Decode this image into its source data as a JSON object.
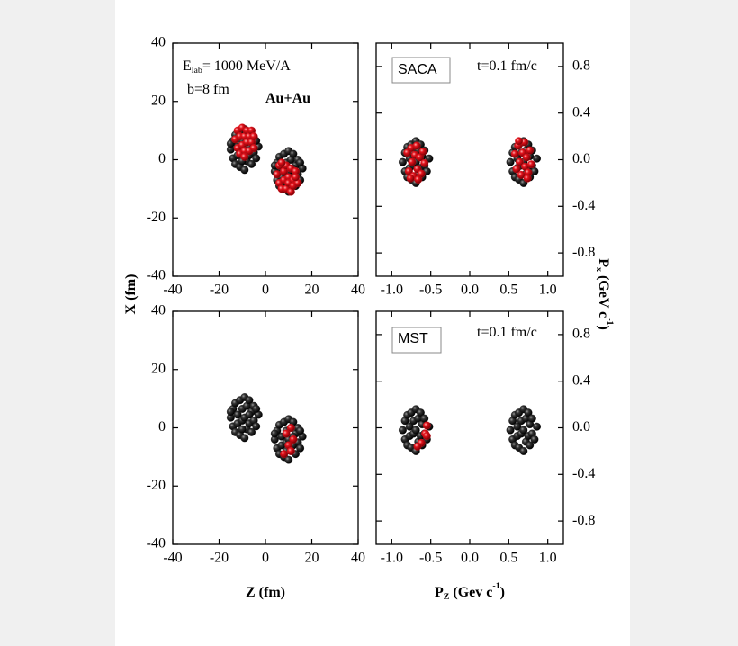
{
  "chart_data": [
    {
      "type": "scatter",
      "xlim": [
        -40,
        40
      ],
      "ylim": [
        -40,
        40
      ],
      "xticks": [
        -40,
        -20,
        0,
        20,
        40
      ],
      "yticks": [
        -40,
        -20,
        0,
        20,
        40
      ],
      "ytick_side": "left",
      "ylabel": [
        {
          "text": "X (fm)"
        }
      ],
      "annotations": [
        [
          {
            "text": "E"
          },
          {
            "sub": "lab"
          },
          {
            "text": "= 1000 MeV/A"
          }
        ],
        [
          {
            "text": "b=8 fm"
          }
        ],
        [
          {
            "text": "Au+Au"
          }
        ]
      ],
      "series": [
        {
          "color": "#1a1a1a",
          "x": [
            -15,
            -14,
            -14,
            -13,
            -13,
            -12,
            -12,
            -11,
            -11,
            -10,
            -10,
            -9,
            -9,
            -9,
            -8,
            -8,
            -7,
            -7,
            -6,
            -6,
            -5,
            -5,
            -4,
            -3,
            -15,
            -4,
            -10,
            -7,
            4,
            5,
            5,
            6,
            6,
            7,
            7,
            8,
            8,
            9,
            9,
            10,
            10,
            10,
            11,
            11,
            12,
            12,
            13,
            13,
            14,
            14,
            15,
            16,
            4,
            15,
            9,
            12
          ],
          "values": [
            3.5,
            6.5,
            0.5,
            8.5,
            -1.5,
            4.5,
            1.5,
            9.5,
            -2.5,
            6.5,
            2.5,
            10.5,
            -3.5,
            3.5,
            7.5,
            -0.5,
            9.5,
            1.5,
            5.5,
            -1.5,
            7.5,
            2.5,
            0.5,
            4.5,
            5.5,
            6.5,
            -0.5,
            4.5,
            -4,
            -1,
            -7,
            1,
            -9,
            -3,
            -6,
            2,
            -10,
            -1,
            -5,
            3,
            -11,
            -4,
            0,
            -8,
            2,
            -6,
            -2,
            -9,
            0,
            -5,
            -7,
            -3,
            -2,
            -1,
            -8,
            -3
          ]
        },
        {
          "color": "#e3121b",
          "x": [
            -13,
            -12,
            -12,
            -11,
            -11,
            -10,
            -10,
            -9,
            -9,
            -8,
            -8,
            -7,
            -7,
            -6,
            -6,
            -5,
            -5,
            -9,
            5,
            6,
            6,
            7,
            8,
            8,
            9,
            9,
            10,
            10,
            11,
            11,
            12,
            12,
            13,
            14,
            13,
            7
          ],
          "values": [
            7,
            10,
            4,
            8,
            2,
            11,
            5,
            8,
            3,
            10,
            6,
            8,
            3,
            10,
            6,
            4,
            8,
            1,
            -5,
            -2,
            -8,
            -10,
            -4,
            -7,
            -2,
            -10,
            -6,
            -8,
            -3,
            -11,
            -7,
            -9,
            -4,
            -8,
            -6,
            -1
          ]
        }
      ]
    },
    {
      "type": "scatter",
      "xlim": [
        -1.2,
        1.2
      ],
      "ylim": [
        -1,
        1
      ],
      "xticks": [
        {
          "value": -1,
          "label": "-1.0"
        },
        -0.5,
        {
          "value": 0,
          "label": "0.0"
        },
        0.5,
        {
          "value": 1,
          "label": "1.0"
        }
      ],
      "yticks": [
        -0.8,
        -0.4,
        {
          "value": 0,
          "label": "0.0"
        },
        0.4,
        0.8
      ],
      "ytick_side": "right",
      "ylabel": [
        {
          "text": "P"
        },
        {
          "sub": "x"
        },
        {
          "text": " (GeV c"
        },
        {
          "sup": "-1"
        },
        {
          "text": ")"
        }
      ],
      "annotations": [
        [
          {
            "text": "SACA"
          }
        ],
        [
          {
            "text": "t=0.1 fm/c"
          }
        ]
      ],
      "series": [
        {
          "color": "#1a1a1a",
          "x": [
            -0.86,
            -0.83,
            -0.83,
            -0.8,
            -0.8,
            -0.77,
            -0.77,
            -0.75,
            -0.75,
            -0.72,
            -0.72,
            -0.69,
            -0.69,
            -0.69,
            -0.66,
            -0.66,
            -0.63,
            -0.63,
            -0.61,
            -0.61,
            -0.58,
            -0.58,
            -0.55,
            -0.52,
            0.52,
            0.55,
            0.55,
            0.58,
            0.58,
            0.61,
            0.61,
            0.63,
            0.63,
            0.66,
            0.66,
            0.69,
            0.69,
            0.69,
            0.72,
            0.72,
            0.75,
            0.75,
            0.77,
            0.77,
            0.8,
            0.8,
            0.83,
            0.86
          ],
          "values": [
            -0.02,
            0.06,
            -0.1,
            0.11,
            -0.15,
            0.01,
            -0.07,
            0.13,
            -0.17,
            0.06,
            -0.05,
            0.16,
            -0.2,
            -0.02,
            0.08,
            -0.12,
            0.13,
            -0.07,
            0.03,
            -0.15,
            0.08,
            -0.05,
            -0.1,
            0.01,
            -0.02,
            0.06,
            -0.1,
            0.11,
            -0.15,
            0.01,
            -0.07,
            0.13,
            -0.17,
            0.06,
            -0.05,
            0.16,
            -0.2,
            -0.02,
            0.08,
            -0.12,
            0.13,
            -0.07,
            0.03,
            -0.15,
            0.08,
            -0.05,
            -0.1,
            0.01
          ]
        },
        {
          "color": "#e3121b",
          "x": [
            -0.8,
            -0.78,
            -0.75,
            -0.74,
            -0.72,
            -0.7,
            -0.68,
            -0.67,
            -0.64,
            -0.62,
            -0.6,
            -0.58,
            -0.76,
            -0.66,
            0.58,
            0.6,
            0.62,
            0.64,
            0.66,
            0.68,
            0.7,
            0.71,
            0.73,
            0.75,
            0.77,
            0.79,
            0.63,
            0.74
          ],
          "values": [
            0.06,
            -0.1,
            0.1,
            -0.02,
            -0.14,
            0.04,
            0.12,
            -0.08,
            0.02,
            -0.12,
            0.07,
            -0.03,
            -0.16,
            -0.17,
            0.05,
            -0.08,
            0.12,
            -0.02,
            -0.13,
            0.06,
            0.15,
            -0.06,
            0.02,
            -0.11,
            0.08,
            -0.04,
            0.16,
            -0.16
          ]
        }
      ]
    },
    {
      "type": "scatter",
      "xlim": [
        -40,
        40
      ],
      "ylim": [
        -40,
        40
      ],
      "xticks": [
        -40,
        -20,
        0,
        20,
        40
      ],
      "yticks": [
        -40,
        -20,
        0,
        20,
        40
      ],
      "ytick_side": "left",
      "xlabel": [
        {
          "text": "Z (fm)"
        }
      ],
      "series": [
        {
          "color": "#1a1a1a",
          "x": [
            -15,
            -14,
            -14,
            -13,
            -13,
            -12,
            -12,
            -11,
            -11,
            -10,
            -10,
            -9,
            -9,
            -9,
            -8,
            -8,
            -7,
            -7,
            -6,
            -6,
            -5,
            -5,
            -4,
            -3,
            -15,
            -4,
            -10,
            -7,
            4,
            5,
            5,
            6,
            6,
            7,
            7,
            8,
            8,
            9,
            9,
            10,
            10,
            10,
            11,
            11,
            12,
            12,
            13,
            13,
            14,
            14,
            15,
            16,
            4,
            15,
            9,
            12
          ],
          "values": [
            3.5,
            6.5,
            0.5,
            8.5,
            -1.5,
            4.5,
            1.5,
            9.5,
            -2.5,
            6.5,
            2.5,
            10.5,
            -3.5,
            3.5,
            7.5,
            -0.5,
            9.5,
            1.5,
            5.5,
            -1.5,
            7.5,
            2.5,
            0.5,
            4.5,
            5.5,
            6.5,
            -0.5,
            4.5,
            -4,
            -1,
            -7,
            1,
            -9,
            -3,
            -6,
            2,
            -10,
            -1,
            -5,
            3,
            -11,
            -4,
            0,
            -8,
            2,
            -6,
            -2,
            -9,
            0,
            -5,
            -7,
            -3,
            -2,
            -1,
            -8,
            -3
          ]
        },
        {
          "color": "#e3121b",
          "x": [
            9,
            11,
            12,
            10,
            8,
            11
          ],
          "values": [
            -2,
            0,
            -4,
            -6,
            -9,
            -8
          ]
        }
      ]
    },
    {
      "type": "scatter",
      "xlim": [
        -1.2,
        1.2
      ],
      "ylim": [
        -1,
        1
      ],
      "xticks": [
        {
          "value": -1,
          "label": "-1.0"
        },
        -0.5,
        {
          "value": 0,
          "label": "0.0"
        },
        0.5,
        {
          "value": 1,
          "label": "1.0"
        }
      ],
      "yticks": [
        -0.8,
        -0.4,
        {
          "value": 0,
          "label": "0.0"
        },
        0.4,
        0.8
      ],
      "ytick_side": "right",
      "xlabel": [
        {
          "text": "P"
        },
        {
          "sub": "Z"
        },
        {
          "text": " (Gev c"
        },
        {
          "sup": "-1"
        },
        {
          "text": ")"
        }
      ],
      "annotations": [
        [
          {
            "text": "MST"
          }
        ],
        [
          {
            "text": "t=0.1 fm/c"
          }
        ]
      ],
      "series": [
        {
          "color": "#1a1a1a",
          "x": [
            -0.86,
            -0.83,
            -0.83,
            -0.8,
            -0.8,
            -0.77,
            -0.77,
            -0.75,
            -0.75,
            -0.72,
            -0.72,
            -0.69,
            -0.69,
            -0.69,
            -0.66,
            -0.66,
            -0.63,
            -0.63,
            -0.61,
            -0.61,
            -0.58,
            -0.58,
            -0.55,
            -0.52,
            0.52,
            0.55,
            0.55,
            0.58,
            0.58,
            0.61,
            0.61,
            0.63,
            0.63,
            0.66,
            0.66,
            0.69,
            0.69,
            0.69,
            0.72,
            0.72,
            0.75,
            0.75,
            0.77,
            0.77,
            0.8,
            0.8,
            0.83,
            0.86
          ],
          "values": [
            -0.02,
            0.06,
            -0.1,
            0.11,
            -0.15,
            0.01,
            -0.07,
            0.13,
            -0.17,
            0.06,
            -0.05,
            0.16,
            -0.2,
            -0.02,
            0.08,
            -0.12,
            0.13,
            -0.07,
            0.03,
            -0.15,
            0.08,
            -0.05,
            -0.1,
            0.01,
            -0.02,
            0.06,
            -0.1,
            0.11,
            -0.15,
            0.01,
            -0.07,
            0.13,
            -0.17,
            0.06,
            -0.05,
            0.16,
            -0.2,
            -0.02,
            0.08,
            -0.12,
            0.13,
            -0.07,
            0.03,
            -0.15,
            0.08,
            -0.05,
            -0.1,
            0.01
          ]
        },
        {
          "color": "#e3121b",
          "x": [
            -0.55,
            -0.57,
            -0.62,
            -0.55,
            -0.67
          ],
          "values": [
            0.02,
            -0.05,
            -0.13,
            -0.07,
            -0.16
          ]
        }
      ]
    }
  ]
}
